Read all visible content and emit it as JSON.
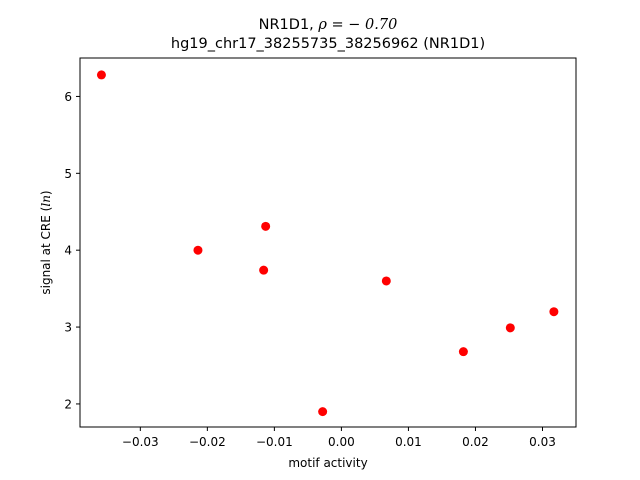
{
  "chart_data": {
    "type": "scatter",
    "title_line1_prefix": "NR1D1, ",
    "title_line1_math": "ρ = − 0.70",
    "title_line2": "hg19_chr17_38255735_38256962 (NR1D1)",
    "xlabel": "motif activity",
    "ylabel_prefix": "signal at CRE (",
    "ylabel_math": "ln",
    "ylabel_suffix": ")",
    "xlim": [
      -0.039,
      0.035
    ],
    "ylim": [
      1.7,
      6.5
    ],
    "xticks": [
      -0.03,
      -0.02,
      -0.01,
      0.0,
      0.01,
      0.02,
      0.03
    ],
    "xtick_labels": [
      "−0.03",
      "−0.02",
      "−0.01",
      "0.00",
      "0.01",
      "0.02",
      "0.03"
    ],
    "yticks": [
      2,
      3,
      4,
      5,
      6
    ],
    "ytick_labels": [
      "2",
      "3",
      "4",
      "5",
      "6"
    ],
    "grid": false,
    "marker_color": "#ff0000",
    "points": [
      {
        "x": -0.0358,
        "y": 6.28
      },
      {
        "x": -0.0214,
        "y": 4.0
      },
      {
        "x": -0.0113,
        "y": 4.31
      },
      {
        "x": -0.0116,
        "y": 3.74
      },
      {
        "x": -0.0028,
        "y": 1.9
      },
      {
        "x": 0.0067,
        "y": 3.6
      },
      {
        "x": 0.0182,
        "y": 2.68
      },
      {
        "x": 0.0252,
        "y": 2.99
      },
      {
        "x": 0.0317,
        "y": 3.2
      }
    ]
  }
}
